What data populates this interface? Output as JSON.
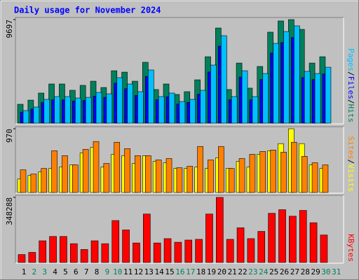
{
  "title": "Daily usage for November 2024",
  "categories": [
    "1",
    "2",
    "3",
    "4",
    "5",
    "6",
    "7",
    "8",
    "9",
    "10",
    "11",
    "12",
    "13",
    "14",
    "15",
    "16",
    "17",
    "18",
    "19",
    "20",
    "21",
    "22",
    "23",
    "24",
    "25",
    "26",
    "27",
    "28",
    "29",
    "30",
    "31"
  ],
  "category_colors": [
    "#000000",
    "#00805c",
    "#00805c",
    "#000000",
    "#000000",
    "#000000",
    "#000000",
    "#000000",
    "#00805c",
    "#00805c",
    "#000000",
    "#000000",
    "#000000",
    "#000000",
    "#000000",
    "#00805c",
    "#00805c",
    "#000000",
    "#000000",
    "#000000",
    "#000000",
    "#000000",
    "#00805c",
    "#00805c",
    "#000000",
    "#000000",
    "#000000",
    "#000000",
    "#000000",
    "#00805c",
    "#00805c"
  ],
  "legend_separator": "/",
  "title_color": "#0000ff",
  "chart_data": [
    {
      "type": "bar",
      "ylim": [
        0,
        9697
      ],
      "yticks": [
        9697
      ],
      "legend_order": [
        2,
        1,
        0
      ],
      "series": [
        {
          "name": "Hits",
          "color": "#00805c",
          "values": [
            1770,
            2160,
            2820,
            3670,
            3670,
            3080,
            3540,
            3930,
            3340,
            4910,
            4780,
            3930,
            5700,
            3150,
            3670,
            2690,
            2950,
            4060,
            6220,
            8910,
            3150,
            5630,
            3280,
            5310,
            8520,
            9570,
            9697,
            8780,
            5630,
            6220,
            null
          ]
        },
        {
          "name": "Files",
          "color": "#0000ff",
          "values": [
            1040,
            1330,
            1960,
            2190,
            2190,
            2080,
            2130,
            2530,
            2420,
            3750,
            3230,
            2600,
            4380,
            2190,
            2480,
            1790,
            1960,
            2710,
            4790,
            7210,
            2190,
            4320,
            2190,
            4090,
            6570,
            7550,
            8020,
            4270,
            4090,
            4610,
            null
          ]
        },
        {
          "name": "Pages",
          "color": "#00c0ff",
          "values": [
            1180,
            1510,
            2230,
            2490,
            2490,
            2360,
            2420,
            2880,
            2750,
            4260,
            3670,
            2950,
            4980,
            2490,
            2820,
            2030,
            2230,
            3080,
            5440,
            8190,
            2490,
            4910,
            2490,
            4650,
            7470,
            8580,
            9110,
            4850,
            4650,
            5240,
            null
          ]
        }
      ]
    },
    {
      "type": "bar",
      "ylim": [
        0,
        970
      ],
      "yticks": [
        970
      ],
      "legend_order": [
        1,
        0
      ],
      "series": [
        {
          "name": "Visits",
          "color": "#ffff00",
          "values": [
            205,
            259,
            313,
            366,
            388,
            420,
            604,
            690,
            388,
            582,
            561,
            442,
            561,
            474,
            453,
            366,
            366,
            388,
            366,
            528,
            366,
            474,
            388,
            582,
            636,
            744,
            970,
            744,
            420,
            366,
            null
          ]
        },
        {
          "name": "Sites",
          "color": "#ff8000",
          "values": [
            345,
            280,
            366,
            636,
            561,
            420,
            658,
            776,
            442,
            765,
            668,
            561,
            561,
            496,
            517,
            377,
            399,
            701,
            496,
            701,
            366,
            517,
            582,
            625,
            647,
            614,
            765,
            550,
            453,
            420,
            null
          ]
        }
      ]
    },
    {
      "type": "bar",
      "ylim": [
        0,
        348288
      ],
      "yticks": [
        348288
      ],
      "legend_order": [
        0
      ],
      "series": [
        {
          "name": "KBytes",
          "color": "#ff0000",
          "values": [
            42570,
            54180,
            116100,
            139320,
            139320,
            100620,
            69660,
            116100,
            100620,
            224460,
            174150,
            104490,
            259290,
            104490,
            127710,
            108360,
            119970,
            123840,
            259290,
            348288,
            123840,
            185760,
            127710,
            166410,
            263160,
            282510,
            247680,
            278640,
            212850,
            147060,
            null
          ]
        }
      ]
    }
  ]
}
